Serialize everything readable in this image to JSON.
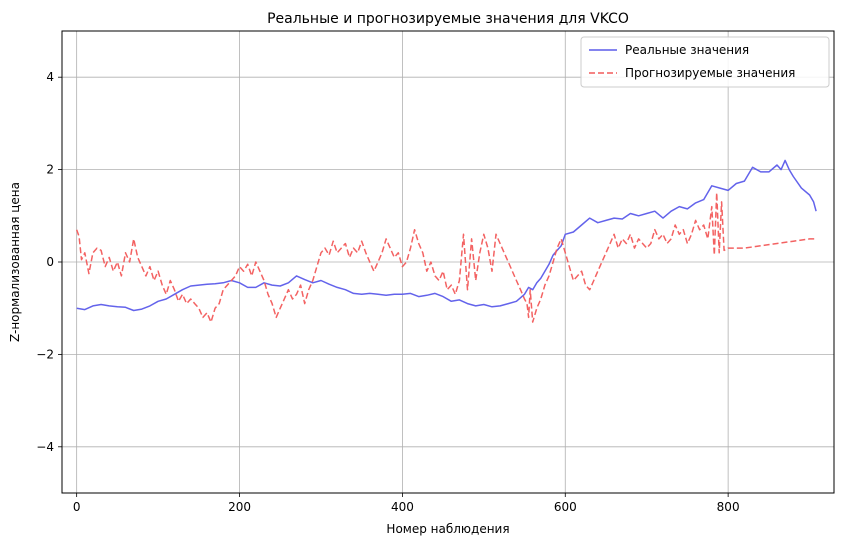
{
  "chart_data": {
    "type": "line",
    "title": "Реальные и прогнозируемые значения для VKCO",
    "xlabel": "Номер наблюдения",
    "ylabel": "Z-нормализованная цена",
    "xlim": [
      -18,
      930
    ],
    "ylim": [
      -5,
      5
    ],
    "xticks": [
      0,
      200,
      400,
      600,
      800
    ],
    "yticks": [
      -4,
      -2,
      0,
      2,
      4
    ],
    "ytick_labels": [
      "−4",
      "−2",
      "0",
      "2",
      "4"
    ],
    "grid": true,
    "legend_position": "top-right",
    "series": [
      {
        "name": "Реальные значения",
        "color": "#5b5bea",
        "dash": "solid",
        "x": [
          0,
          10,
          20,
          30,
          40,
          50,
          60,
          70,
          80,
          90,
          100,
          110,
          120,
          130,
          140,
          150,
          160,
          170,
          180,
          190,
          200,
          210,
          220,
          230,
          240,
          250,
          260,
          270,
          280,
          290,
          300,
          310,
          320,
          330,
          340,
          350,
          360,
          370,
          380,
          390,
          400,
          410,
          420,
          430,
          440,
          450,
          460,
          470,
          480,
          490,
          500,
          510,
          520,
          530,
          540,
          550,
          555,
          560,
          565,
          570,
          575,
          580,
          585,
          590,
          595,
          600,
          610,
          620,
          630,
          640,
          650,
          660,
          670,
          680,
          690,
          700,
          710,
          720,
          730,
          740,
          750,
          760,
          770,
          780,
          790,
          800,
          810,
          820,
          830,
          840,
          850,
          860,
          865,
          870,
          875,
          880,
          890,
          900,
          905,
          908
        ],
        "y": [
          -1.0,
          -1.03,
          -0.95,
          -0.92,
          -0.95,
          -0.97,
          -0.98,
          -1.05,
          -1.02,
          -0.95,
          -0.85,
          -0.8,
          -0.7,
          -0.6,
          -0.52,
          -0.5,
          -0.48,
          -0.47,
          -0.45,
          -0.4,
          -0.45,
          -0.55,
          -0.55,
          -0.45,
          -0.5,
          -0.52,
          -0.45,
          -0.3,
          -0.38,
          -0.45,
          -0.4,
          -0.48,
          -0.55,
          -0.6,
          -0.68,
          -0.7,
          -0.68,
          -0.7,
          -0.72,
          -0.7,
          -0.7,
          -0.68,
          -0.75,
          -0.72,
          -0.68,
          -0.75,
          -0.85,
          -0.82,
          -0.9,
          -0.95,
          -0.92,
          -0.97,
          -0.95,
          -0.9,
          -0.85,
          -0.7,
          -0.55,
          -0.6,
          -0.45,
          -0.35,
          -0.2,
          -0.05,
          0.15,
          0.25,
          0.35,
          0.6,
          0.65,
          0.8,
          0.95,
          0.85,
          0.9,
          0.95,
          0.93,
          1.05,
          1.0,
          1.05,
          1.1,
          0.95,
          1.1,
          1.2,
          1.15,
          1.28,
          1.35,
          1.65,
          1.6,
          1.55,
          1.7,
          1.75,
          2.05,
          1.95,
          1.95,
          2.1,
          2.0,
          2.2,
          2.0,
          1.85,
          1.6,
          1.45,
          1.3,
          1.1
        ]
      },
      {
        "name": "Прогнозируемые значения",
        "color": "#f25a5a",
        "dash": "dashed",
        "x": [
          0,
          3,
          6,
          10,
          15,
          20,
          25,
          30,
          35,
          40,
          45,
          50,
          55,
          60,
          65,
          70,
          75,
          80,
          85,
          90,
          95,
          100,
          105,
          110,
          115,
          120,
          125,
          130,
          135,
          140,
          145,
          150,
          155,
          160,
          165,
          170,
          175,
          180,
          185,
          190,
          195,
          200,
          205,
          210,
          215,
          220,
          225,
          230,
          235,
          240,
          245,
          250,
          255,
          260,
          265,
          270,
          275,
          280,
          285,
          290,
          295,
          300,
          305,
          310,
          315,
          320,
          325,
          330,
          335,
          340,
          345,
          350,
          355,
          360,
          365,
          370,
          375,
          380,
          385,
          390,
          395,
          400,
          405,
          410,
          415,
          420,
          425,
          430,
          435,
          440,
          445,
          450,
          455,
          460,
          465,
          470,
          475,
          480,
          485,
          490,
          495,
          500,
          505,
          510,
          515,
          520,
          525,
          530,
          535,
          540,
          545,
          550,
          553,
          555,
          557,
          560,
          565,
          570,
          575,
          580,
          585,
          590,
          595,
          600,
          605,
          610,
          615,
          620,
          625,
          630,
          635,
          640,
          645,
          650,
          655,
          660,
          665,
          670,
          675,
          680,
          685,
          690,
          695,
          700,
          705,
          710,
          715,
          720,
          725,
          730,
          735,
          740,
          745,
          750,
          755,
          760,
          765,
          770,
          775,
          780,
          783,
          786,
          789,
          792,
          795,
          800,
          820,
          840,
          860,
          880,
          900,
          908
        ],
        "y": [
          0.7,
          0.55,
          0.05,
          0.2,
          -0.25,
          0.2,
          0.3,
          0.25,
          -0.1,
          0.1,
          -0.2,
          0.0,
          -0.3,
          0.2,
          0.0,
          0.5,
          0.1,
          -0.1,
          -0.3,
          -0.1,
          -0.4,
          -0.2,
          -0.5,
          -0.7,
          -0.4,
          -0.6,
          -0.85,
          -0.7,
          -0.9,
          -0.8,
          -0.9,
          -1.0,
          -1.2,
          -1.1,
          -1.3,
          -1.0,
          -0.9,
          -0.6,
          -0.5,
          -0.4,
          -0.3,
          -0.1,
          -0.2,
          -0.05,
          -0.3,
          0.0,
          -0.2,
          -0.4,
          -0.7,
          -0.9,
          -1.2,
          -1.0,
          -0.8,
          -0.6,
          -0.8,
          -0.7,
          -0.5,
          -0.9,
          -0.6,
          -0.4,
          -0.1,
          0.2,
          0.3,
          0.15,
          0.45,
          0.2,
          0.3,
          0.4,
          0.1,
          0.3,
          0.2,
          0.45,
          0.2,
          0.0,
          -0.2,
          0.0,
          0.2,
          0.5,
          0.3,
          0.1,
          0.2,
          -0.1,
          0.0,
          0.3,
          0.7,
          0.4,
          0.2,
          -0.2,
          0.0,
          -0.3,
          -0.4,
          -0.2,
          -0.6,
          -0.5,
          -0.7,
          -0.4,
          0.6,
          -0.6,
          0.5,
          -0.4,
          0.2,
          0.6,
          0.3,
          -0.2,
          0.6,
          0.4,
          0.2,
          0.0,
          -0.2,
          -0.4,
          -0.6,
          -0.8,
          -0.9,
          -1.2,
          -0.6,
          -1.3,
          -1.0,
          -0.8,
          -0.5,
          -0.3,
          0.0,
          0.3,
          0.5,
          0.2,
          -0.1,
          -0.4,
          -0.3,
          -0.2,
          -0.5,
          -0.6,
          -0.4,
          -0.2,
          0.0,
          0.2,
          0.4,
          0.6,
          0.3,
          0.5,
          0.4,
          0.6,
          0.3,
          0.5,
          0.4,
          0.3,
          0.4,
          0.7,
          0.5,
          0.6,
          0.4,
          0.5,
          0.8,
          0.6,
          0.7,
          0.4,
          0.6,
          0.9,
          0.7,
          0.8,
          0.5,
          1.2,
          0.15,
          1.5,
          0.2,
          1.3,
          0.25,
          0.3,
          0.3,
          0.35,
          0.4,
          0.45,
          0.5,
          0.5
        ]
      }
    ]
  }
}
